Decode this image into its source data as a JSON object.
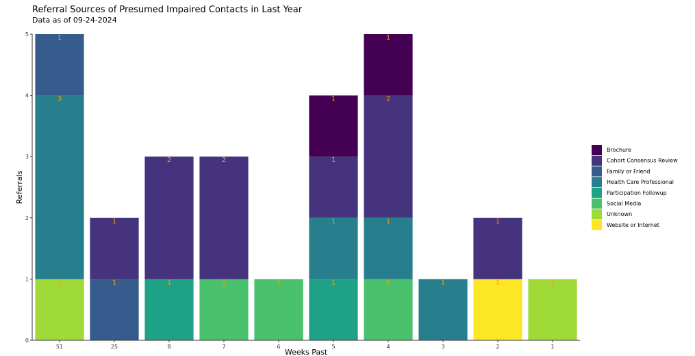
{
  "chart_data": {
    "type": "bar",
    "stacked": true,
    "title": "Referral Sources of Presumed Impaired Contacts in Last Year",
    "subtitle": "Data as of 09-24-2024",
    "xlabel": "Weeks Past",
    "ylabel": "Referrals",
    "ylim": [
      0,
      5
    ],
    "yticks": [
      0,
      1,
      2,
      3,
      4,
      5
    ],
    "grid": false,
    "legend_position": "right",
    "categories": [
      "51",
      "25",
      "8",
      "7",
      "6",
      "5",
      "4",
      "3",
      "2",
      "1"
    ],
    "series": [
      {
        "name": "Brochure",
        "color": "#440154",
        "values": [
          0,
          0,
          0,
          0,
          0,
          1,
          1,
          0,
          0,
          0
        ]
      },
      {
        "name": "Cohort Consensus Review",
        "color": "#46337e",
        "values": [
          0,
          1,
          2,
          2,
          0,
          1,
          2,
          0,
          1,
          0
        ]
      },
      {
        "name": "Family or Friend",
        "color": "#365c8d",
        "values": [
          1,
          1,
          0,
          0,
          0,
          0,
          0,
          0,
          0,
          0
        ]
      },
      {
        "name": "Health Care Professional",
        "color": "#277f8e",
        "values": [
          3,
          0,
          0,
          0,
          0,
          1,
          1,
          1,
          0,
          0
        ]
      },
      {
        "name": "Participation Followup",
        "color": "#1fa187",
        "values": [
          0,
          0,
          1,
          0,
          0,
          1,
          0,
          0,
          0,
          0
        ]
      },
      {
        "name": "Social Media",
        "color": "#4ac16d",
        "values": [
          0,
          0,
          0,
          1,
          1,
          0,
          1,
          0,
          0,
          0
        ]
      },
      {
        "name": "Unknown",
        "color": "#a0da39",
        "values": [
          1,
          0,
          0,
          0,
          0,
          0,
          0,
          0,
          0,
          1
        ]
      },
      {
        "name": "Website or Internet",
        "color": "#fde725",
        "values": [
          0,
          0,
          0,
          0,
          0,
          0,
          0,
          0,
          1,
          0
        ]
      }
    ]
  }
}
